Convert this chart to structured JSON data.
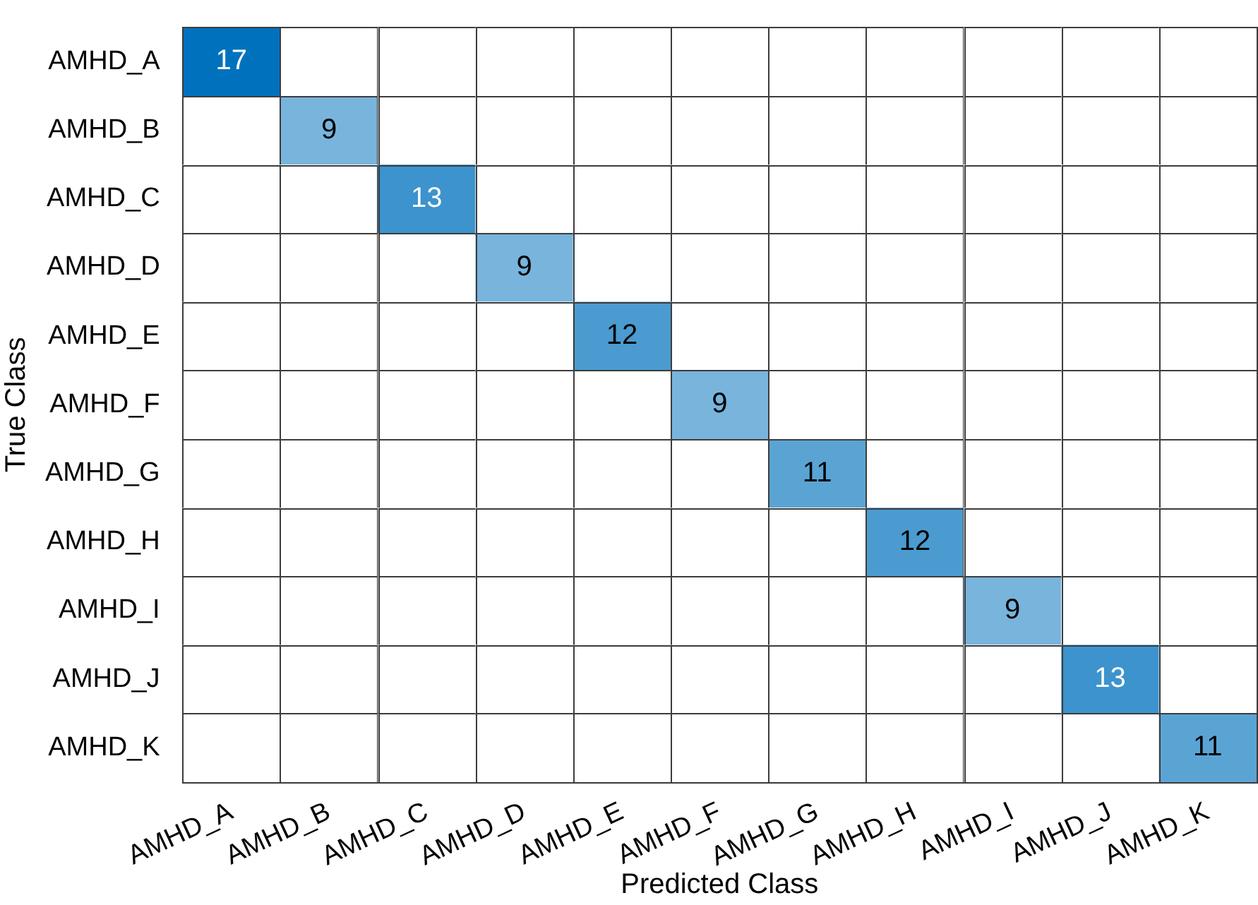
{
  "chart_data": {
    "type": "heatmap",
    "xlabel": "Predicted Class",
    "ylabel": "True Class",
    "categories": [
      "AMHD_A",
      "AMHD_B",
      "AMHD_C",
      "AMHD_D",
      "AMHD_E",
      "AMHD_F",
      "AMHD_G",
      "AMHD_H",
      "AMHD_I",
      "AMHD_J",
      "AMHD_K"
    ],
    "y_categories": [
      "AMHD_A",
      "AMHD_B",
      "AMHD_C",
      "AMHD_D",
      "AMHD_E",
      "AMHD_F",
      "AMHD_G",
      "AMHD_H",
      "AMHD_I",
      "AMHD_J",
      "AMHD_K"
    ],
    "color": "#0072bd",
    "data_labels": true,
    "cells": [
      [
        17,
        null,
        null,
        null,
        null,
        null,
        null,
        null,
        null,
        null,
        null
      ],
      [
        null,
        9,
        null,
        null,
        null,
        null,
        null,
        null,
        null,
        null,
        null
      ],
      [
        null,
        null,
        13,
        null,
        null,
        null,
        null,
        null,
        null,
        null,
        null
      ],
      [
        null,
        null,
        null,
        9,
        null,
        null,
        null,
        null,
        null,
        null,
        null
      ],
      [
        null,
        null,
        null,
        null,
        12,
        null,
        null,
        null,
        null,
        null,
        null
      ],
      [
        null,
        null,
        null,
        null,
        null,
        9,
        null,
        null,
        null,
        null,
        null
      ],
      [
        null,
        null,
        null,
        null,
        null,
        null,
        11,
        null,
        null,
        null,
        null
      ],
      [
        null,
        null,
        null,
        null,
        null,
        null,
        null,
        12,
        null,
        null,
        null
      ],
      [
        null,
        null,
        null,
        null,
        null,
        null,
        null,
        null,
        9,
        null,
        null
      ],
      [
        null,
        null,
        null,
        null,
        null,
        null,
        null,
        null,
        null,
        13,
        null
      ],
      [
        null,
        null,
        null,
        null,
        null,
        null,
        null,
        null,
        null,
        null,
        11
      ]
    ]
  }
}
